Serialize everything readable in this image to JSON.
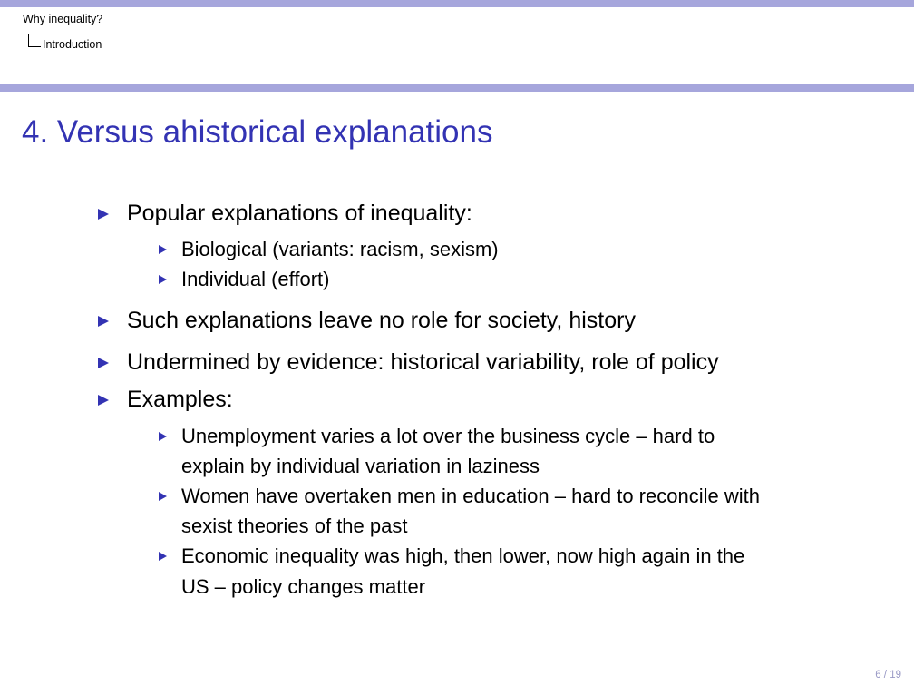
{
  "header": {
    "section": "Why inequality?",
    "subsection": "Introduction"
  },
  "frame": {
    "title": "4. Versus ahistorical explanations"
  },
  "bullets": [
    {
      "text": "Popular explanations of inequality:",
      "sub": [
        "Biological (variants: racism, sexism)",
        "Individual (effort)"
      ]
    },
    {
      "text": "Such explanations leave no role for society, history"
    },
    {
      "text": "Undermined by evidence: historical variability, role of policy"
    },
    {
      "text": "Examples:",
      "sub": [
        [
          "Unemployment varies a lot over the business cycle – hard to",
          "explain by individual variation in laziness"
        ],
        [
          "Women have overtaken men in education – hard to reconcile with",
          "sexist theories of the past"
        ],
        [
          "Economic inequality was high, then lower, now high again in the",
          "US – policy changes matter"
        ]
      ]
    }
  ],
  "footer": {
    "page": "6 / 19"
  },
  "colors": {
    "bar": "#a6a6dc",
    "title": "#3333b3",
    "bullet": "#3333b3"
  }
}
